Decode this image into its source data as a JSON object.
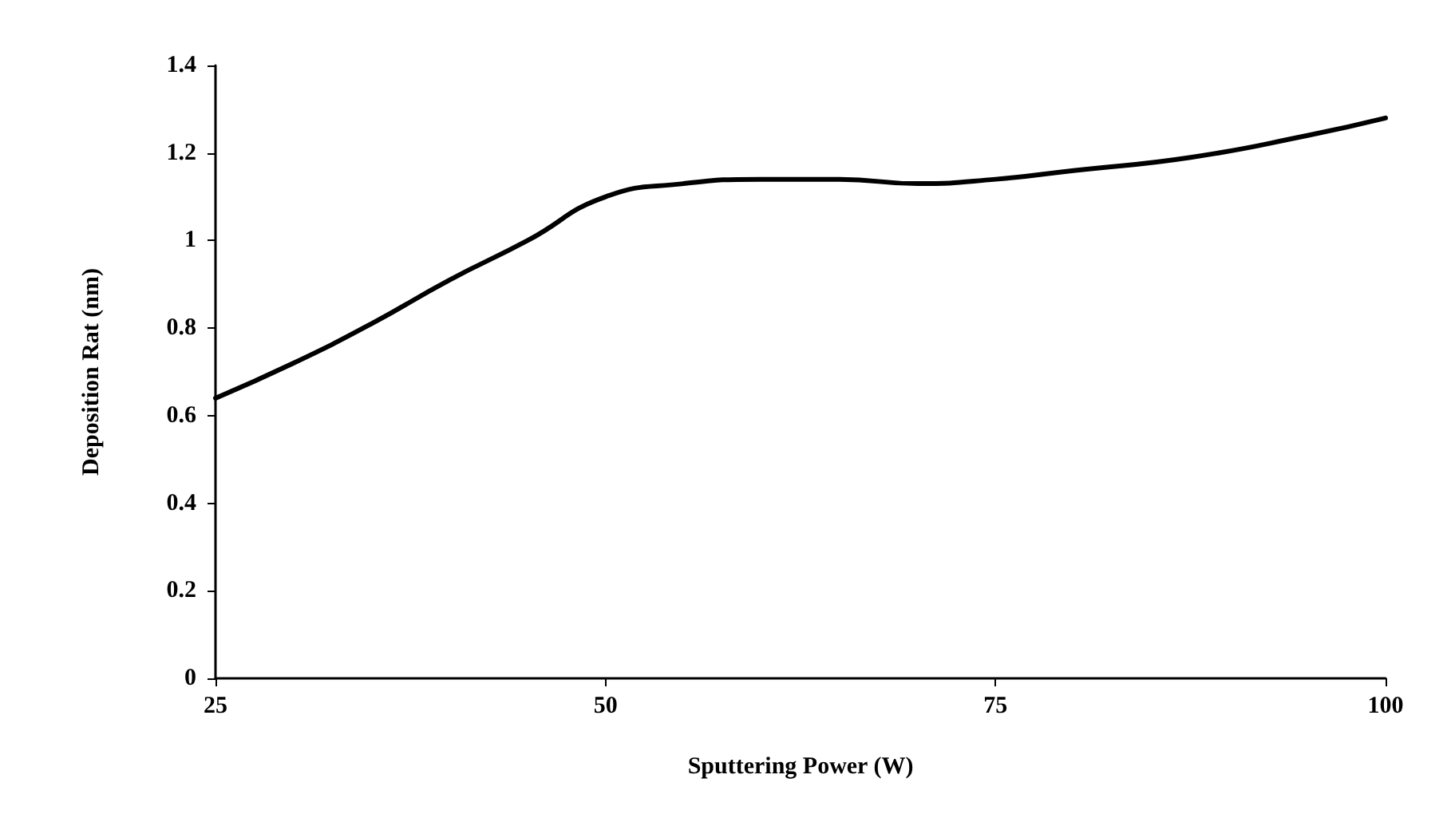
{
  "chart_data": {
    "type": "line",
    "xlabel": "Sputtering Power (W)",
    "ylabel": "Deposition Rat (nm)",
    "x": [
      25,
      30,
      35,
      40,
      45,
      50,
      55,
      60,
      65,
      70,
      75,
      80,
      87.5,
      95,
      100
    ],
    "series": [
      {
        "color": "#000000",
        "values": [
          0.64,
          0.72,
          0.81,
          0.91,
          1.0,
          1.1,
          1.13,
          1.14,
          1.14,
          1.13,
          1.14,
          1.16,
          1.19,
          1.24,
          1.28
        ]
      }
    ],
    "xlim": [
      25,
      100
    ],
    "xticks": [
      25,
      50,
      75,
      100
    ],
    "ylim": [
      0,
      1.4
    ],
    "yticks": [
      0,
      0.2,
      0.4,
      0.6,
      0.8,
      1,
      1.2,
      1.4
    ],
    "grid": false,
    "marker": "none",
    "line_style": "solid"
  }
}
